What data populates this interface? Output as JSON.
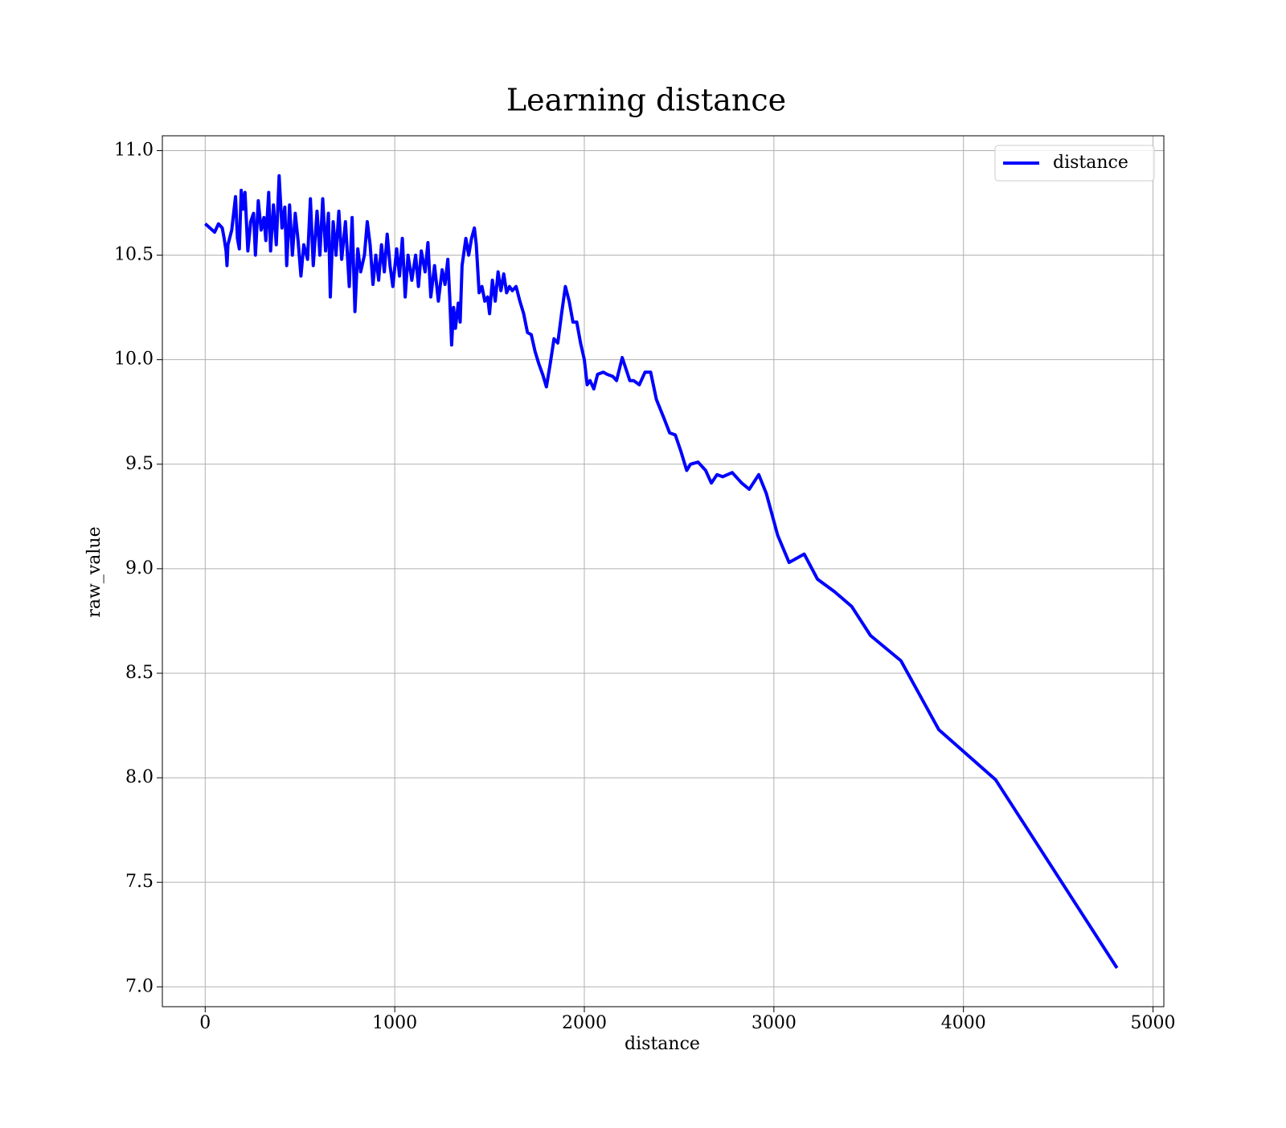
{
  "chart_data": {
    "type": "line",
    "title": "Learning distance",
    "x_label": "distance",
    "y_label": "raw_value",
    "x": [
      0,
      50,
      70,
      90,
      100,
      110,
      115,
      120,
      140,
      150,
      160,
      170,
      180,
      190,
      200,
      210,
      225,
      240,
      255,
      265,
      280,
      295,
      310,
      320,
      335,
      345,
      360,
      375,
      390,
      405,
      420,
      430,
      445,
      460,
      475,
      490,
      505,
      520,
      540,
      555,
      570,
      590,
      605,
      620,
      635,
      650,
      660,
      675,
      690,
      705,
      720,
      740,
      760,
      775,
      790,
      805,
      820,
      840,
      855,
      870,
      885,
      900,
      915,
      930,
      945,
      960,
      975,
      990,
      1010,
      1025,
      1040,
      1055,
      1070,
      1090,
      1110,
      1125,
      1140,
      1160,
      1175,
      1190,
      1210,
      1230,
      1250,
      1265,
      1280,
      1290,
      1300,
      1310,
      1320,
      1335,
      1345,
      1355,
      1375,
      1390,
      1405,
      1420,
      1430,
      1445,
      1460,
      1475,
      1490,
      1500,
      1515,
      1530,
      1545,
      1560,
      1575,
      1590,
      1605,
      1620,
      1640,
      1660,
      1680,
      1700,
      1720,
      1740,
      1760,
      1780,
      1800,
      1820,
      1840,
      1860,
      1880,
      1900,
      1920,
      1940,
      1960,
      1980,
      2000,
      2015,
      2030,
      2050,
      2070,
      2100,
      2120,
      2150,
      2170,
      2200,
      2240,
      2260,
      2290,
      2320,
      2350,
      2380,
      2420,
      2450,
      2480,
      2510,
      2540,
      2560,
      2600,
      2640,
      2670,
      2700,
      2730,
      2780,
      2830,
      2870,
      2920,
      2960,
      3020,
      3080,
      3160,
      3230,
      3320,
      3410,
      3510,
      3670,
      3870,
      4170,
      4810
    ],
    "series": [
      {
        "name": "distance",
        "color": "#0000ff",
        "values": [
          10.65,
          10.61,
          10.65,
          10.63,
          10.58,
          10.52,
          10.45,
          10.55,
          10.62,
          10.7,
          10.78,
          10.58,
          10.53,
          10.81,
          10.72,
          10.8,
          10.52,
          10.66,
          10.7,
          10.5,
          10.76,
          10.62,
          10.68,
          10.57,
          10.8,
          10.52,
          10.74,
          10.55,
          10.88,
          10.63,
          10.73,
          10.45,
          10.74,
          10.5,
          10.7,
          10.57,
          10.4,
          10.55,
          10.48,
          10.77,
          10.45,
          10.71,
          10.5,
          10.77,
          10.52,
          10.7,
          10.3,
          10.66,
          10.5,
          10.71,
          10.48,
          10.66,
          10.35,
          10.68,
          10.23,
          10.53,
          10.42,
          10.5,
          10.66,
          10.55,
          10.36,
          10.5,
          10.38,
          10.55,
          10.42,
          10.6,
          10.45,
          10.35,
          10.53,
          10.4,
          10.58,
          10.3,
          10.5,
          10.38,
          10.5,
          10.35,
          10.52,
          10.42,
          10.56,
          10.3,
          10.45,
          10.28,
          10.43,
          10.36,
          10.48,
          10.3,
          10.07,
          10.25,
          10.15,
          10.27,
          10.18,
          10.45,
          10.58,
          10.5,
          10.58,
          10.63,
          10.55,
          10.32,
          10.35,
          10.28,
          10.3,
          10.22,
          10.38,
          10.28,
          10.42,
          10.33,
          10.41,
          10.32,
          10.35,
          10.33,
          10.35,
          10.28,
          10.22,
          10.13,
          10.12,
          10.04,
          9.98,
          9.93,
          9.87,
          9.98,
          10.1,
          10.08,
          10.22,
          10.35,
          10.28,
          10.18,
          10.18,
          10.08,
          10.0,
          9.88,
          9.9,
          9.86,
          9.93,
          9.94,
          9.93,
          9.92,
          9.9,
          10.01,
          9.9,
          9.9,
          9.88,
          9.94,
          9.94,
          9.81,
          9.72,
          9.65,
          9.64,
          9.56,
          9.47,
          9.5,
          9.51,
          9.47,
          9.41,
          9.45,
          9.44,
          9.46,
          9.41,
          9.38,
          9.45,
          9.36,
          9.16,
          9.03,
          9.07,
          8.95,
          8.89,
          8.82,
          8.68,
          8.56,
          8.23,
          7.99,
          7.09
        ]
      }
    ],
    "xlim": [
      -226,
      5057
    ],
    "ylim": [
      6.905,
      11.071
    ],
    "xticks": [
      0,
      1000,
      2000,
      3000,
      4000,
      5000
    ],
    "yticks": [
      {
        "value": 7,
        "label": "7.0"
      },
      {
        "value": 7.5,
        "label": "7.5"
      },
      {
        "value": 8,
        "label": "8.0"
      },
      {
        "value": 8.5,
        "label": "8.5"
      },
      {
        "value": 9,
        "label": "9.0"
      },
      {
        "value": 9.5,
        "label": "9.5"
      },
      {
        "value": 10,
        "label": "10.0"
      },
      {
        "value": 10.5,
        "label": "10.5"
      },
      {
        "value": 11,
        "label": "11.0"
      }
    ],
    "grid": true,
    "legend": "upper right"
  }
}
